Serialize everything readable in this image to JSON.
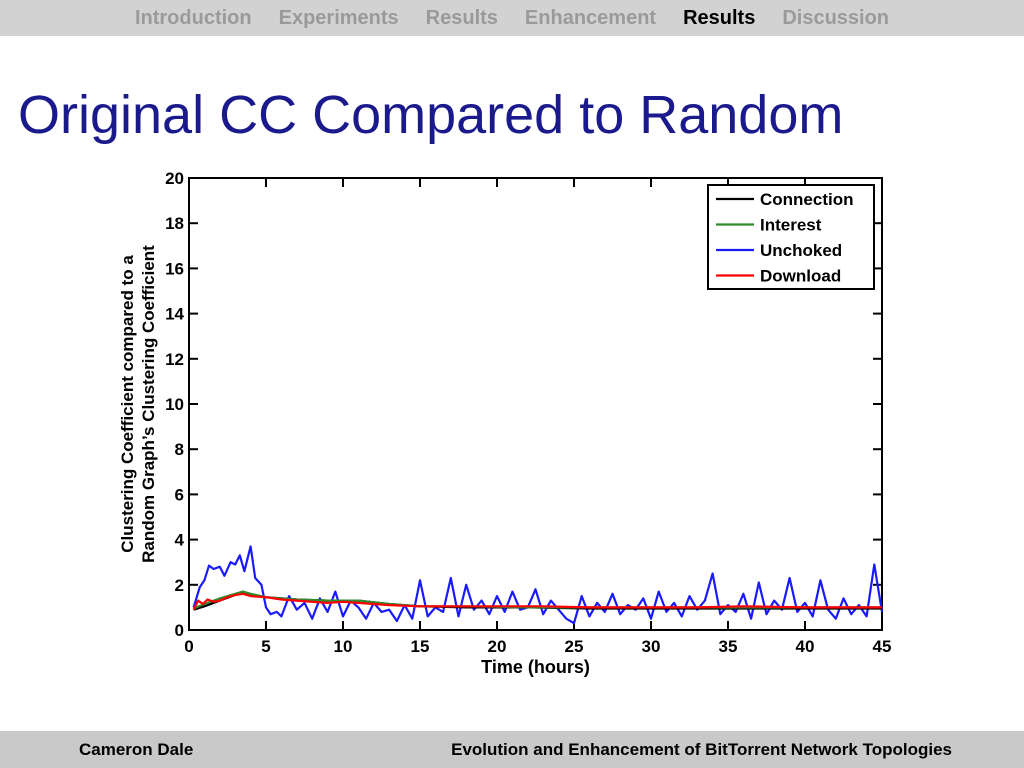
{
  "nav": {
    "items": [
      {
        "label": "Introduction",
        "active": false
      },
      {
        "label": "Experiments",
        "active": false
      },
      {
        "label": "Results",
        "active": false
      },
      {
        "label": "Enhancement",
        "active": false
      },
      {
        "label": "Results",
        "active": true
      },
      {
        "label": "Discussion",
        "active": false
      }
    ]
  },
  "slide": {
    "title": "Original CC Compared to Random"
  },
  "footer": {
    "author": "Cameron Dale",
    "title": "Evolution and Enhancement of BitTorrent Network Topologies"
  },
  "chart_data": {
    "type": "line",
    "xlabel": "Time (hours)",
    "ylabel_lines": [
      "Clustering Coefficient compared to a",
      "Random Graph’s Clustering Coefficient"
    ],
    "xlim": [
      0,
      45
    ],
    "ylim": [
      0,
      20
    ],
    "xticks": [
      0,
      5,
      10,
      15,
      20,
      25,
      30,
      35,
      40,
      45
    ],
    "yticks": [
      0,
      2,
      4,
      6,
      8,
      10,
      12,
      14,
      16,
      18,
      20
    ],
    "grid": false,
    "legend_position": "top-right",
    "series": [
      {
        "name": "Connection",
        "color": "#000000",
        "x": [
          0.3,
          1,
          2,
          3,
          3.5,
          4,
          5,
          7,
          9,
          11,
          13,
          15,
          18,
          22,
          26,
          30,
          35,
          40,
          45
        ],
        "y": [
          0.9,
          1.05,
          1.3,
          1.55,
          1.65,
          1.55,
          1.45,
          1.35,
          1.3,
          1.3,
          1.15,
          1.05,
          1.0,
          1.0,
          0.95,
          0.95,
          0.95,
          0.95,
          0.95
        ]
      },
      {
        "name": "Interest",
        "color": "#2e8b2e",
        "x": [
          0.3,
          1,
          2,
          3,
          3.5,
          4,
          5,
          7,
          9,
          11,
          13,
          15,
          18,
          22,
          26,
          30,
          35,
          40,
          45
        ],
        "y": [
          0.95,
          1.15,
          1.4,
          1.6,
          1.7,
          1.6,
          1.45,
          1.35,
          1.3,
          1.3,
          1.15,
          1.05,
          1.05,
          1.0,
          1.0,
          1.0,
          1.0,
          1.0,
          1.0
        ]
      },
      {
        "name": "Unchoked",
        "color": "#1a1aff",
        "x": [
          0.3,
          0.7,
          1.0,
          1.3,
          1.6,
          2.0,
          2.3,
          2.7,
          3.0,
          3.3,
          3.6,
          4.0,
          4.3,
          4.7,
          5.0,
          5.3,
          5.7,
          6.0,
          6.5,
          7.0,
          7.5,
          8.0,
          8.5,
          9.0,
          9.5,
          10.0,
          10.5,
          11.0,
          11.5,
          12.0,
          12.5,
          13.0,
          13.5,
          14.0,
          14.5,
          15.0,
          15.5,
          16.0,
          16.5,
          17.0,
          17.5,
          18.0,
          18.5,
          19.0,
          19.5,
          20.0,
          20.5,
          21.0,
          21.5,
          22.0,
          22.5,
          23.0,
          23.5,
          24.0,
          24.5,
          25.0,
          25.5,
          26.0,
          26.5,
          27.0,
          27.5,
          28.0,
          28.5,
          29.0,
          29.5,
          30.0,
          30.5,
          31.0,
          31.5,
          32.0,
          32.5,
          33.0,
          33.5,
          34.0,
          34.5,
          35.0,
          35.5,
          36.0,
          36.5,
          37.0,
          37.5,
          38.0,
          38.5,
          39.0,
          39.5,
          40.0,
          40.5,
          41.0,
          41.5,
          42.0,
          42.5,
          43.0,
          43.5,
          44.0,
          44.5,
          45.0
        ],
        "y": [
          1.0,
          1.9,
          2.2,
          2.85,
          2.7,
          2.8,
          2.4,
          3.0,
          2.9,
          3.3,
          2.6,
          3.7,
          2.3,
          2.0,
          1.0,
          0.7,
          0.8,
          0.6,
          1.5,
          0.9,
          1.2,
          0.5,
          1.4,
          0.8,
          1.7,
          0.6,
          1.3,
          1.0,
          0.5,
          1.2,
          0.8,
          0.9,
          0.4,
          1.1,
          0.5,
          2.2,
          0.6,
          1.0,
          0.8,
          2.3,
          0.6,
          2.0,
          0.9,
          1.3,
          0.7,
          1.5,
          0.8,
          1.7,
          0.9,
          1.0,
          1.8,
          0.7,
          1.3,
          0.9,
          0.5,
          0.3,
          1.5,
          0.6,
          1.2,
          0.8,
          1.6,
          0.7,
          1.1,
          0.9,
          1.4,
          0.5,
          1.7,
          0.8,
          1.2,
          0.6,
          1.5,
          0.9,
          1.3,
          2.5,
          0.7,
          1.1,
          0.8,
          1.6,
          0.5,
          2.1,
          0.7,
          1.3,
          0.9,
          2.3,
          0.8,
          1.2,
          0.6,
          2.2,
          0.9,
          0.5,
          1.4,
          0.7,
          1.1,
          0.6,
          2.9,
          0.8
        ]
      },
      {
        "name": "Download",
        "color": "#ff0000",
        "x": [
          0.3,
          0.6,
          0.9,
          1.2,
          1.6,
          2,
          2.5,
          3,
          3.5,
          4,
          5,
          6,
          7,
          8,
          9,
          10,
          11,
          12,
          13,
          15,
          17,
          20,
          23,
          26,
          30,
          33,
          36,
          40,
          43,
          45
        ],
        "y": [
          0.9,
          1.3,
          1.15,
          1.35,
          1.25,
          1.3,
          1.45,
          1.55,
          1.6,
          1.5,
          1.45,
          1.35,
          1.3,
          1.25,
          1.2,
          1.25,
          1.2,
          1.15,
          1.1,
          1.05,
          1.05,
          1.05,
          1.05,
          1.0,
          1.0,
          1.0,
          1.05,
          1.0,
          1.0,
          1.0
        ]
      }
    ]
  }
}
